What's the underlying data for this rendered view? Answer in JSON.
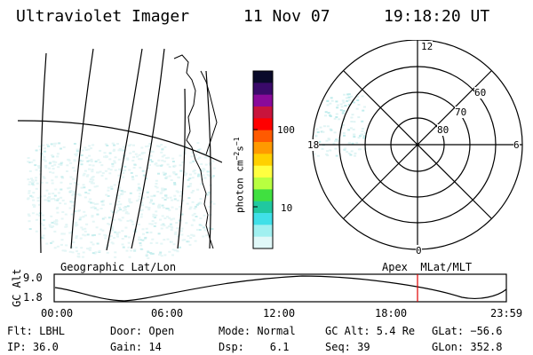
{
  "header": {
    "instrument": "Ultraviolet Imager",
    "date": "11 Nov 07",
    "time": "19:18:20 UT"
  },
  "colorbar": {
    "unit_label": "photon cm^-2 s^-1",
    "ticks": [
      "100",
      "10"
    ],
    "colors": [
      "#0a0a2a",
      "#3a0a6a",
      "#8a0a9a",
      "#c8143c",
      "#ff0000",
      "#ff5a00",
      "#ff9a00",
      "#ffd000",
      "#ffff40",
      "#b8ff40",
      "#40e040",
      "#20c8a0",
      "#40e0e8",
      "#a0f0f0",
      "#e0f8f8"
    ]
  },
  "polar_plot": {
    "mlt_labels": {
      "top": "12",
      "left": "18",
      "right": "6",
      "bottom": "0"
    },
    "lat_labels": [
      "60",
      "70",
      "80"
    ]
  },
  "map_labels": {
    "left": "Geographic Lat/Lon",
    "right": "Apex  MLat/MLT"
  },
  "altitude_plot": {
    "y_axis_label": "GC Alt",
    "y_ticks": [
      "9.0",
      "1.8"
    ],
    "x_ticks": [
      "00:00",
      "06:00",
      "12:00",
      "18:00",
      "23:59"
    ],
    "marker_color": "#e00000"
  },
  "info": {
    "flt": "Flt: LBHL",
    "ip": "IP: 36.0",
    "door": "Door: Open",
    "gain": "Gain: 14",
    "mode": "Mode: Normal",
    "dsp": "Dsp:    6.1",
    "gc_alt": "GC Alt: 5.4 Re",
    "seq": "Seq: 39",
    "glat": "GLat: −56.6",
    "glon": "GLon: 352.8"
  }
}
